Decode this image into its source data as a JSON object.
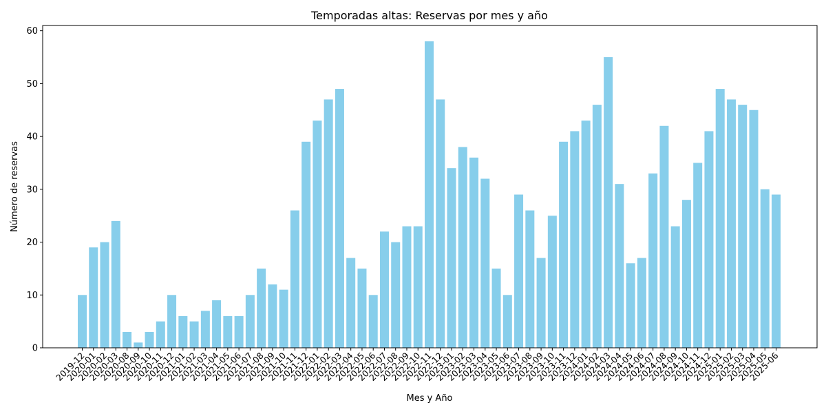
{
  "chart_data": {
    "type": "bar",
    "title": "Temporadas altas: Reservas por mes y año",
    "xlabel": "Mes y Año",
    "ylabel": "Número de reservas",
    "ylim": [
      0,
      61
    ],
    "yticks": [
      "0",
      "10",
      "20",
      "30",
      "40",
      "50",
      "60"
    ],
    "grid": false,
    "bar_color": "#87ceeb",
    "categories": [
      "2019-12",
      "2020-01",
      "2020-02",
      "2020-03",
      "2020-08",
      "2020-09",
      "2020-10",
      "2020-11",
      "2020-12",
      "2021-01",
      "2021-02",
      "2021-03",
      "2021-04",
      "2021-05",
      "2021-06",
      "2021-07",
      "2021-08",
      "2021-09",
      "2021-10",
      "2021-11",
      "2021-12",
      "2022-01",
      "2022-02",
      "2022-03",
      "2022-04",
      "2022-05",
      "2022-06",
      "2022-07",
      "2022-08",
      "2022-09",
      "2022-10",
      "2022-11",
      "2022-12",
      "2023-01",
      "2023-02",
      "2023-03",
      "2023-04",
      "2023-05",
      "2023-06",
      "2023-07",
      "2023-08",
      "2023-09",
      "2023-10",
      "2023-11",
      "2023-12",
      "2024-01",
      "2024-02",
      "2024-03",
      "2024-04",
      "2024-05",
      "2024-06",
      "2024-07",
      "2024-08",
      "2024-09",
      "2024-10",
      "2024-11",
      "2024-12",
      "2025-01",
      "2025-02",
      "2025-03",
      "2025-04",
      "2025-05",
      "2025-06"
    ],
    "values": [
      10,
      19,
      20,
      24,
      3,
      1,
      3,
      5,
      10,
      6,
      5,
      7,
      9,
      6,
      6,
      10,
      15,
      12,
      11,
      26,
      39,
      43,
      47,
      49,
      17,
      15,
      10,
      22,
      20,
      23,
      23,
      58,
      47,
      34,
      38,
      36,
      32,
      15,
      10,
      29,
      26,
      17,
      25,
      39,
      41,
      43,
      46,
      55,
      31,
      16,
      17,
      33,
      42,
      23,
      28,
      35,
      41,
      49,
      47,
      46,
      45,
      30,
      29
    ]
  }
}
